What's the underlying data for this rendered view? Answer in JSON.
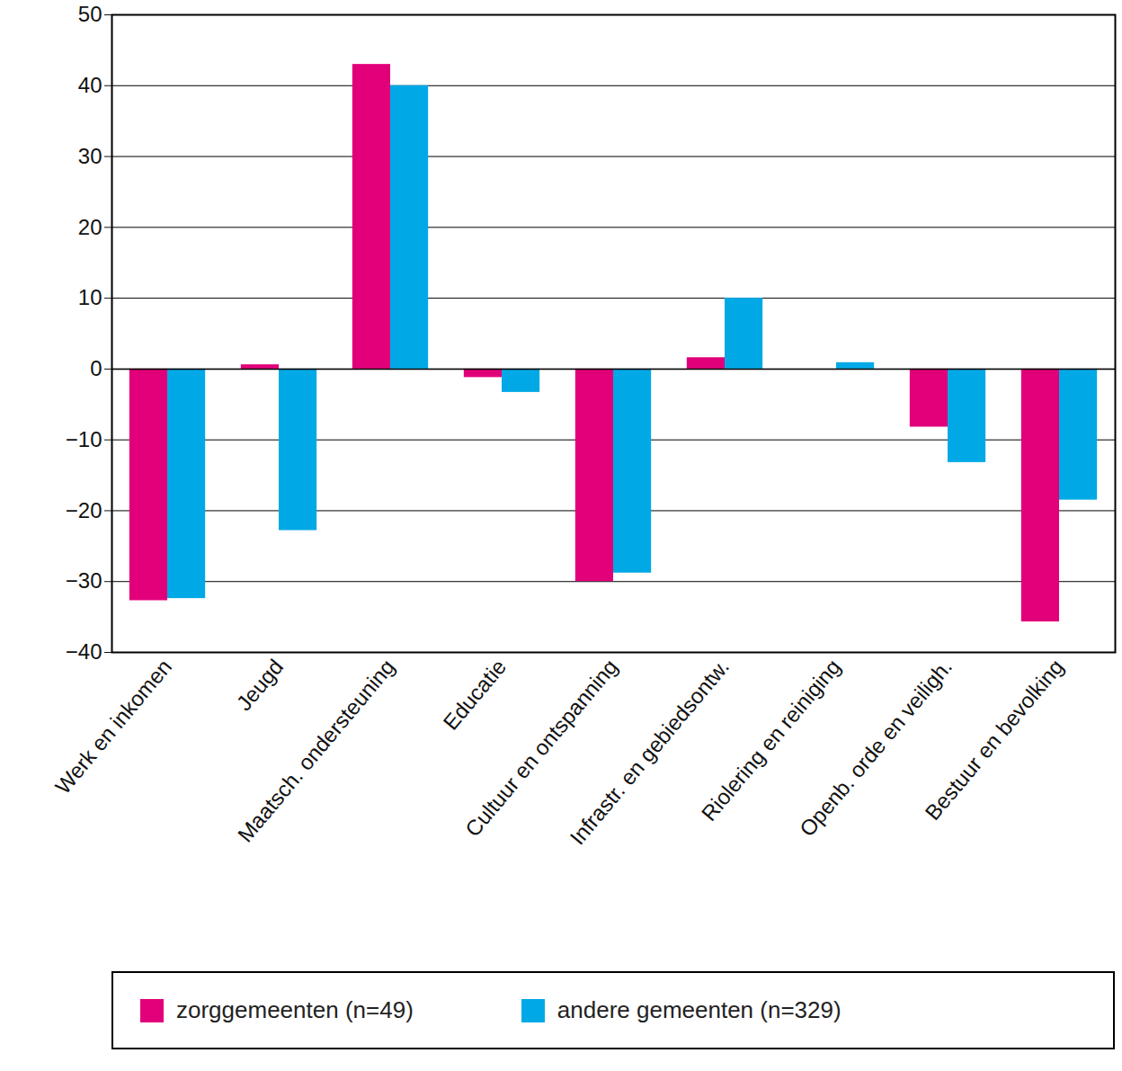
{
  "chart_data": {
    "type": "bar",
    "categories": [
      "Werk en inkomen",
      "Jeugd",
      "Maatsch. ondersteuning",
      "Educatie",
      "Cultuur en ontspanning",
      "Infrastr. en gebiedsontw.",
      "Riolering en reiniging",
      "Openb. orde en veiligh.",
      "Bestuur en bevolking"
    ],
    "series": [
      {
        "name": "zorggemeenten (n=49)",
        "color": "#e2007a",
        "values": [
          -32.7,
          0.6,
          43,
          -1.2,
          -30,
          1.6,
          0,
          -8.2,
          -35.7
        ]
      },
      {
        "name": "andere gemeenten (n=329)",
        "color": "#00a9e6",
        "values": [
          -32.4,
          -22.8,
          40,
          -3.3,
          -28.8,
          10,
          0.9,
          -13.2,
          -18.5
        ]
      }
    ],
    "ylim": [
      -40,
      50
    ],
    "yticks": [
      -40,
      -30,
      -20,
      -10,
      0,
      10,
      20,
      30,
      40,
      50
    ],
    "grid": true,
    "legend": "bottom"
  }
}
